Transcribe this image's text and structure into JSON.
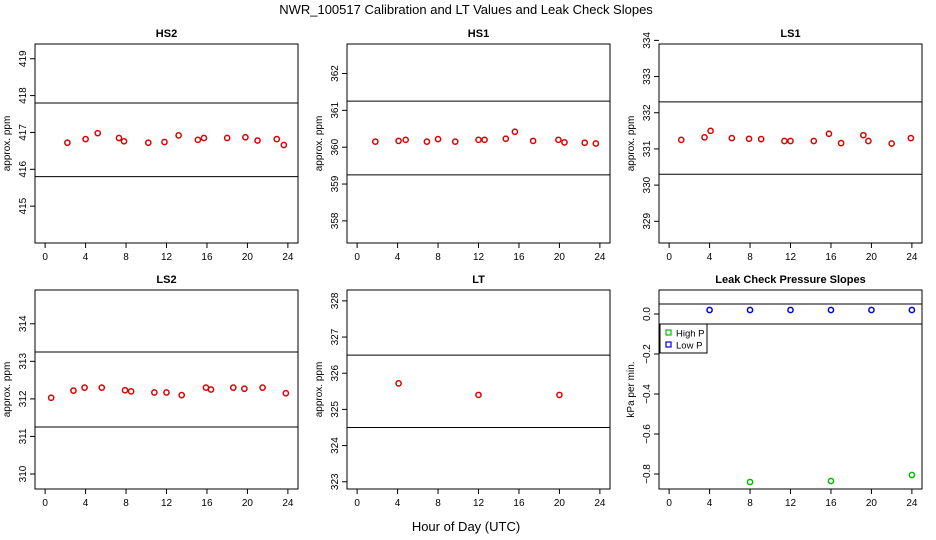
{
  "figure": {
    "title": "NWR_100517  Calibration and LT Values and Leak Check Slopes",
    "xlabel": "Hour of Day (UTC)"
  },
  "chart_data": [
    {
      "type": "scatter",
      "title": "HS2",
      "ylabel": "approx. ppm",
      "xlim": [
        -1,
        25
      ],
      "ylim": [
        414,
        419.4
      ],
      "xticks": [
        0,
        4,
        8,
        12,
        16,
        20,
        24
      ],
      "yticks": [
        415,
        416,
        417,
        418,
        419
      ],
      "hlines": [
        417.8,
        415.8
      ],
      "series": [
        {
          "color": "#dd0000",
          "marker": "circle",
          "x": [
            2.2,
            4.0,
            5.2,
            7.3,
            7.8,
            10.2,
            11.8,
            13.2,
            15.1,
            15.7,
            18.0,
            19.8,
            21.0,
            22.9,
            23.6
          ],
          "y": [
            416.72,
            416.82,
            416.98,
            416.85,
            416.76,
            416.72,
            416.74,
            416.92,
            416.8,
            416.85,
            416.85,
            416.87,
            416.78,
            416.82,
            416.66
          ]
        }
      ]
    },
    {
      "type": "scatter",
      "title": "HS1",
      "ylabel": "approx. ppm",
      "xlim": [
        -1,
        25
      ],
      "ylim": [
        357.4,
        362.8
      ],
      "xticks": [
        0,
        4,
        8,
        12,
        16,
        20,
        24
      ],
      "yticks": [
        358,
        359,
        360,
        361,
        362
      ],
      "hlines": [
        361.25,
        359.25
      ],
      "series": [
        {
          "color": "#dd0000",
          "marker": "circle",
          "x": [
            1.8,
            4.1,
            4.8,
            6.9,
            8.0,
            9.7,
            12.0,
            12.6,
            14.7,
            15.6,
            17.4,
            19.9,
            20.5,
            22.5,
            23.6
          ],
          "y": [
            360.15,
            360.17,
            360.2,
            360.15,
            360.22,
            360.15,
            360.2,
            360.2,
            360.23,
            360.42,
            360.17,
            360.2,
            360.13,
            360.12,
            360.1
          ]
        }
      ]
    },
    {
      "type": "scatter",
      "title": "LS1",
      "ylabel": "approx. ppm",
      "xlim": [
        -1,
        25
      ],
      "ylim": [
        328.4,
        333.9
      ],
      "xticks": [
        0,
        4,
        8,
        12,
        16,
        20,
        24
      ],
      "yticks": [
        329,
        330,
        331,
        332,
        333,
        334
      ],
      "hlines": [
        332.3,
        330.3
      ],
      "series": [
        {
          "color": "#dd0000",
          "marker": "circle",
          "x": [
            1.2,
            3.5,
            4.1,
            6.2,
            7.9,
            9.1,
            11.4,
            12.0,
            14.3,
            15.8,
            17.0,
            19.2,
            19.7,
            22.0,
            23.9
          ],
          "y": [
            331.25,
            331.32,
            331.5,
            331.3,
            331.28,
            331.27,
            331.22,
            331.22,
            331.22,
            331.42,
            331.16,
            331.38,
            331.22,
            331.15,
            331.3
          ]
        }
      ]
    },
    {
      "type": "scatter",
      "title": "LS2",
      "ylabel": "approx. ppm",
      "xlim": [
        -1,
        25
      ],
      "ylim": [
        309.6,
        314.9
      ],
      "xticks": [
        0,
        4,
        8,
        12,
        16,
        20,
        24
      ],
      "yticks": [
        310,
        311,
        312,
        313,
        314
      ],
      "hlines": [
        313.25,
        311.25
      ],
      "series": [
        {
          "color": "#dd0000",
          "marker": "circle",
          "x": [
            0.6,
            2.8,
            3.9,
            5.6,
            7.9,
            8.5,
            10.8,
            12.0,
            13.5,
            15.9,
            16.4,
            18.6,
            19.7,
            21.5,
            23.8
          ],
          "y": [
            312.03,
            312.22,
            312.3,
            312.3,
            312.23,
            312.2,
            312.17,
            312.17,
            312.1,
            312.3,
            312.25,
            312.3,
            312.27,
            312.3,
            312.15
          ]
        }
      ]
    },
    {
      "type": "scatter",
      "title": "LT",
      "ylabel": "approx. ppm",
      "xlim": [
        -1,
        25
      ],
      "ylim": [
        322.8,
        328.3
      ],
      "xticks": [
        0,
        4,
        8,
        12,
        16,
        20,
        24
      ],
      "yticks": [
        323,
        324,
        325,
        326,
        327,
        328
      ],
      "hlines": [
        326.5,
        324.5
      ],
      "series": [
        {
          "color": "#dd0000",
          "marker": "circle",
          "x": [
            4.1,
            12.0,
            20.0
          ],
          "y": [
            325.72,
            325.4,
            325.4
          ]
        }
      ]
    },
    {
      "type": "scatter",
      "title": "Leak Check Pressure Slopes",
      "ylabel": "kPa per min.",
      "xlim": [
        -1,
        25
      ],
      "ylim": [
        -0.875,
        0.12
      ],
      "xticks": [
        0,
        4,
        8,
        12,
        16,
        20,
        24
      ],
      "yticks": [
        0.0,
        -0.2,
        -0.4,
        -0.6,
        -0.8
      ],
      "ytick_labels": [
        "0.0",
        "−0.2",
        "−0.4",
        "−0.6",
        "−0.8"
      ],
      "hlines": [
        0.05,
        -0.05
      ],
      "legend": {
        "position": "left",
        "entries": [
          "High P",
          "Low P"
        ]
      },
      "series": [
        {
          "name": "High P",
          "color": "#00bb00",
          "marker": "circle",
          "x": [
            8,
            16,
            24
          ],
          "y": [
            -0.84,
            -0.835,
            -0.805
          ]
        },
        {
          "name": "Low P",
          "color": "#0000dd",
          "marker": "circle",
          "x": [
            4,
            8,
            12,
            16,
            20,
            24
          ],
          "y": [
            0.02,
            0.02,
            0.02,
            0.02,
            0.02,
            0.02
          ]
        }
      ]
    }
  ]
}
